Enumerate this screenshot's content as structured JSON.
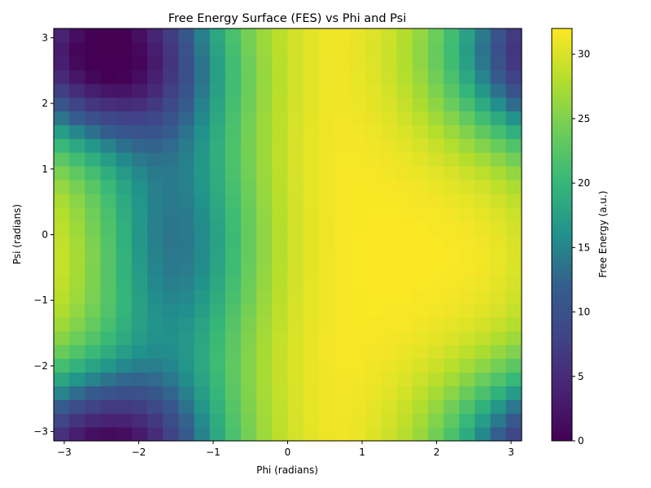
{
  "chart_data": {
    "type": "heatmap",
    "title": "Free Energy Surface (FES) vs Phi and Psi",
    "xlabel": "Phi (radians)",
    "ylabel": "Psi (radians)",
    "colorbar_label": "Free Energy (a.u.)",
    "colormap": "viridis",
    "xlim": [
      -3.1416,
      3.1416
    ],
    "ylim": [
      -3.1416,
      3.1416
    ],
    "zlim": [
      0,
      32
    ],
    "x_ticks": [
      -3,
      -2,
      -1,
      0,
      1,
      2,
      3
    ],
    "x_tick_labels": [
      "−3",
      "−2",
      "−1",
      "0",
      "1",
      "2",
      "3"
    ],
    "y_ticks": [
      -3,
      -2,
      -1,
      0,
      1,
      2,
      3
    ],
    "y_tick_labels": [
      "−3",
      "−2",
      "−1",
      "0",
      "1",
      "2",
      "3"
    ],
    "colorbar_ticks": [
      0,
      5,
      10,
      15,
      20,
      25,
      30
    ],
    "colorbar_tick_labels": [
      "0",
      "5",
      "10",
      "15",
      "20",
      "25",
      "30"
    ],
    "grid_shape": [
      30,
      30
    ],
    "grid_model": {
      "base": 32,
      "wells": [
        {
          "phi": -2.5,
          "psi": 2.8,
          "depth": 32,
          "sigma_phi": 1.1,
          "sigma_psi": 1.0
        },
        {
          "phi": -1.5,
          "psi": -0.2,
          "depth": 18,
          "sigma_phi": 0.8,
          "sigma_psi": 1.6
        }
      ]
    }
  }
}
